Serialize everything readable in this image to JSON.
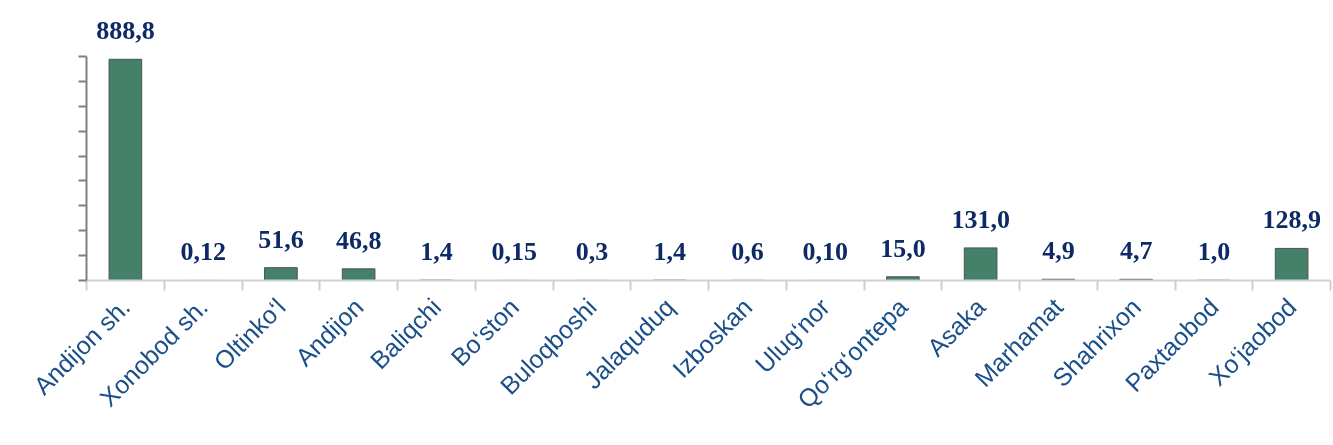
{
  "chart_data": {
    "type": "bar",
    "categories": [
      "Andijon sh.",
      "Xonobod sh.",
      "Oltinko‘l",
      "Andijon",
      "Baliqchi",
      "Bo‘ston",
      "Buloqboshi",
      "Jalaquduq",
      "Izboskan",
      "Ulug‘nor",
      "Qo‘rg‘ontepa",
      "Asaka",
      "Marhamat",
      "Shahrixon",
      "Paxtaobod",
      "Xo‘jaobod"
    ],
    "values": [
      888.8,
      0.12,
      51.6,
      46.8,
      1.4,
      0.15,
      0.3,
      1.4,
      0.6,
      0.1,
      15.0,
      131.0,
      4.9,
      4.7,
      1.0,
      128.9
    ],
    "value_labels": [
      "888,8",
      "0,12",
      "51,6",
      "46,8",
      "1,4",
      "0,15",
      "0,3",
      "1,4",
      "0,6",
      "0,10",
      "15,0",
      "131,0",
      "4,9",
      "4,7",
      "1,0",
      "128,9"
    ],
    "color": "#44806a",
    "ylim": [
      0,
      900
    ],
    "yticks": [
      {
        "value": 0,
        "label": null
      },
      {
        "value": 100,
        "label": null
      },
      {
        "value": 200,
        "label": null
      },
      {
        "value": 300,
        "label": null
      },
      {
        "value": 400,
        "label": null
      },
      {
        "value": 500,
        "label": null
      },
      {
        "value": 600,
        "label": null
      },
      {
        "value": 700,
        "label": null
      },
      {
        "value": 800,
        "label": null
      },
      {
        "value": 900,
        "label": null
      }
    ],
    "tick_labels": "x"
  }
}
